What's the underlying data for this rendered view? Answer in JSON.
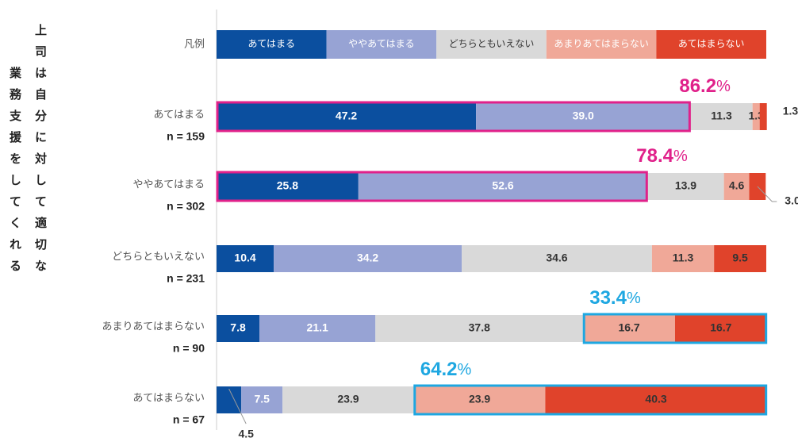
{
  "chart_data": {
    "type": "stacked_bar_horizontal",
    "y_label": [
      "上司は自分に対して適切な",
      "業務支援をしてくれる"
    ],
    "legend_label": "凡例",
    "categories": [
      "あてはまる",
      "ややあてはまる",
      "どちらともいえない",
      "あまりあてはまらない",
      "あてはまらない"
    ],
    "category_n": [
      "n = 159",
      "n = 302",
      "n = 231",
      "n = 90",
      "n = 67"
    ],
    "xlim": [
      0,
      100
    ],
    "series": [
      {
        "name": "あてはまる",
        "color": "#0b4f9f",
        "values": [
          47.2,
          25.8,
          10.4,
          7.8,
          4.5
        ],
        "value_labels": [
          "47.2",
          "25.8",
          "10.4",
          "7.8",
          "4.5"
        ]
      },
      {
        "name": "ややあてはまる",
        "color": "#97a3d4",
        "values": [
          39.0,
          52.6,
          34.2,
          21.1,
          7.5
        ],
        "value_labels": [
          "39.0",
          "52.6",
          "34.2",
          "21.1",
          "7.5"
        ]
      },
      {
        "name": "どちらともいえない",
        "color": "#d9d9d9",
        "values": [
          11.3,
          13.9,
          34.6,
          37.8,
          23.9
        ],
        "value_labels": [
          "11.3",
          "13.9",
          "34.6",
          "37.8",
          "23.9"
        ]
      },
      {
        "name": "あまりあてはまらない",
        "color": "#f0a898",
        "values": [
          1.3,
          4.6,
          11.3,
          16.7,
          23.9
        ],
        "value_labels": [
          "1.3",
          "4.6",
          "11.3",
          "16.7",
          "23.9"
        ]
      },
      {
        "name": "あてはまらない",
        "color": "#e0432b",
        "values": [
          1.3,
          3.0,
          9.5,
          16.7,
          40.3
        ],
        "value_labels": [
          "1.3",
          "3.0",
          "9.5",
          "16.7",
          "40.3"
        ]
      }
    ],
    "highlights": [
      {
        "row": 0,
        "from": 0,
        "to": 1,
        "value": 86.2,
        "unit": "%",
        "color": "#e0218a",
        "align": "right"
      },
      {
        "row": 1,
        "from": 0,
        "to": 1,
        "value": 78.4,
        "unit": "%",
        "color": "#e0218a",
        "align": "right"
      },
      {
        "row": 3,
        "from": 3,
        "to": 4,
        "value": 33.4,
        "unit": "%",
        "color": "#1ea7e1",
        "align": "left"
      },
      {
        "row": 4,
        "from": 3,
        "to": 4,
        "value": 64.2,
        "unit": "%",
        "color": "#1ea7e1",
        "align": "left"
      }
    ]
  }
}
